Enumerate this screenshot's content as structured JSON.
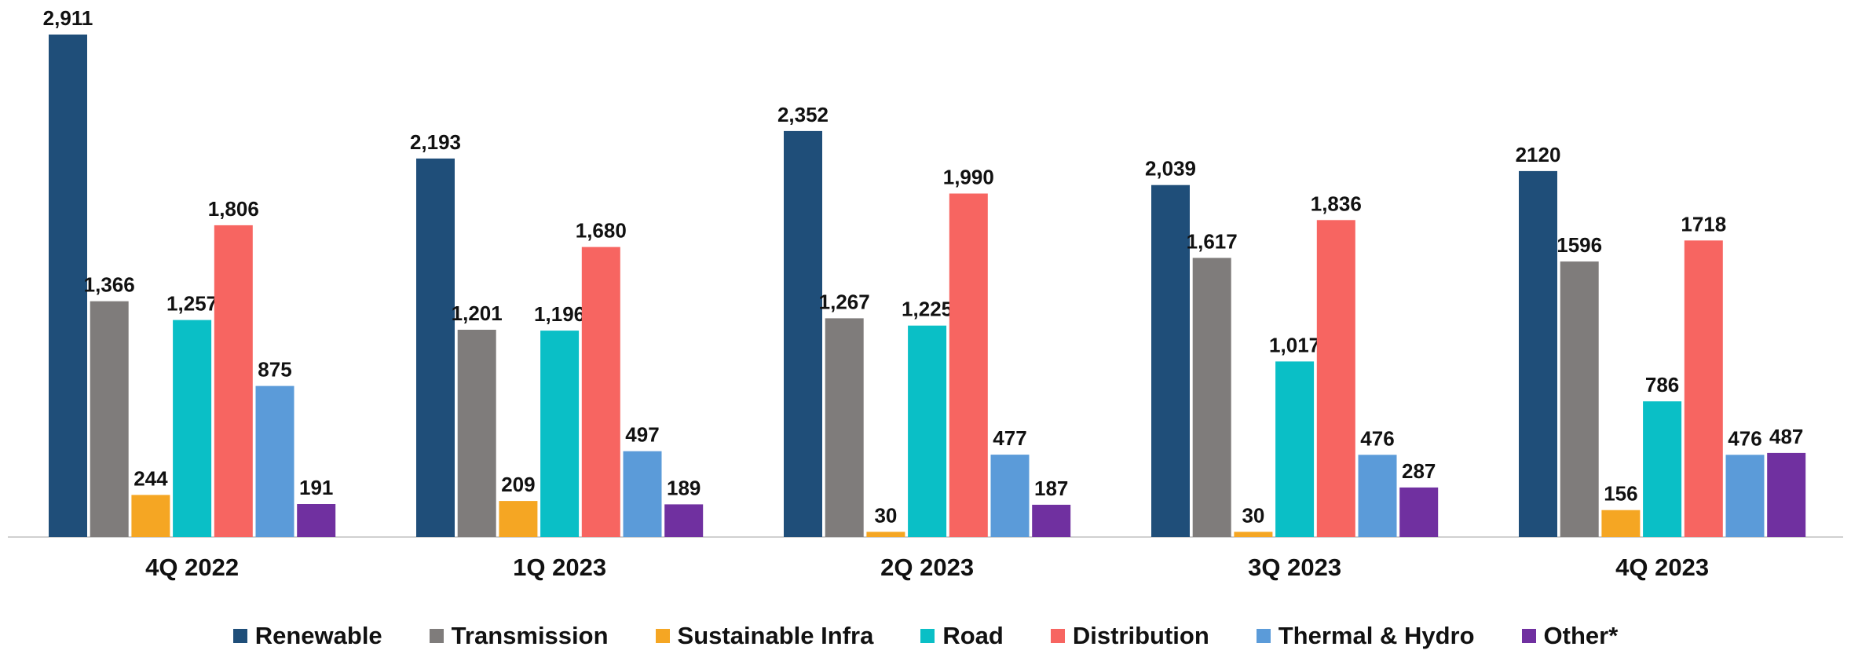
{
  "chart_data": {
    "type": "bar",
    "title": "",
    "xlabel": "",
    "ylabel": "",
    "ylim": [
      0,
      2911
    ],
    "grid": false,
    "legend_position": "bottom",
    "categories": [
      "4Q 2022",
      "1Q 2023",
      "2Q 2023",
      "3Q 2023",
      "4Q 2023"
    ],
    "series": [
      {
        "name": "Renewable",
        "color": "#1F4E79",
        "values": [
          2911,
          2193,
          2352,
          2039,
          2120
        ],
        "labels": [
          "2,911",
          "2,193",
          "2,352",
          "2,039",
          "2120"
        ]
      },
      {
        "name": "Transmission",
        "color": "#7F7C7B",
        "values": [
          1366,
          1201,
          1267,
          1617,
          1596
        ],
        "labels": [
          "1,366",
          "1,201",
          "1,267",
          "1,617",
          "1596"
        ]
      },
      {
        "name": "Sustainable Infra",
        "color": "#F5A623",
        "values": [
          244,
          209,
          30,
          30,
          156
        ],
        "labels": [
          "244",
          "209",
          "30",
          "30",
          "156"
        ]
      },
      {
        "name": "Road",
        "color": "#0ABFC6",
        "values": [
          1257,
          1196,
          1225,
          1017,
          786
        ],
        "labels": [
          "1,257",
          "1,196",
          "1,225",
          "1,017",
          "786"
        ]
      },
      {
        "name": "Distribution",
        "color": "#F76561",
        "values": [
          1806,
          1680,
          1990,
          1836,
          1718
        ],
        "labels": [
          "1,806",
          "1,680",
          "1,990",
          "1,836",
          "1718"
        ]
      },
      {
        "name": "Thermal & Hydro",
        "color": "#5B9BD9",
        "values": [
          875,
          497,
          477,
          476,
          476
        ],
        "labels": [
          "875",
          "497",
          "477",
          "476",
          "476"
        ]
      },
      {
        "name": "Other*",
        "color": "#7030A0",
        "values": [
          191,
          189,
          187,
          287,
          487
        ],
        "labels": [
          "191",
          "189",
          "187",
          "287",
          "487"
        ]
      }
    ]
  }
}
